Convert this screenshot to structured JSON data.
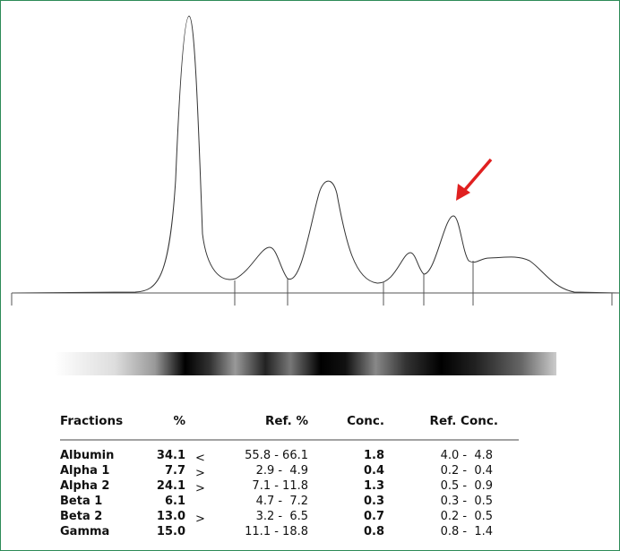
{
  "table": {
    "header": [
      "Fractions",
      "%",
      "Ref. %",
      "Conc.",
      "Ref. Conc."
    ],
    "rows": [
      {
        "name": "Albumin",
        "percent": "34.1",
        "flag": "<",
        "ref_percent": "55.8 - 66.1",
        "conc": "1.8",
        "ref_conc": "4.0 -  4.8"
      },
      {
        "name": "Alpha 1",
        "percent": "7.7",
        "flag": ">",
        "ref_percent": "2.9 -  4.9",
        "conc": "0.4",
        "ref_conc": "0.2 -  0.4"
      },
      {
        "name": "Alpha 2",
        "percent": "24.1",
        "flag": ">",
        "ref_percent": "7.1 - 11.8",
        "conc": "1.3",
        "ref_conc": "0.5 -  0.9"
      },
      {
        "name": "Beta 1",
        "percent": "6.1",
        "ref_percent": "4.7 -  7.2",
        "conc": "0.3",
        "ref_conc": "0.3 -  0.5"
      },
      {
        "name": "Beta 2",
        "percent": "13.0",
        "flag": ">",
        "ref_percent": "3.2 -  6.5",
        "conc": "0.7",
        "ref_conc": "0.2 -  0.5"
      },
      {
        "name": "Gamma",
        "percent": "15.0",
        "ref_percent": "11.1 - 18.8",
        "conc": "0.8",
        "ref_conc": "0.8 -  1.4"
      }
    ]
  }
}
